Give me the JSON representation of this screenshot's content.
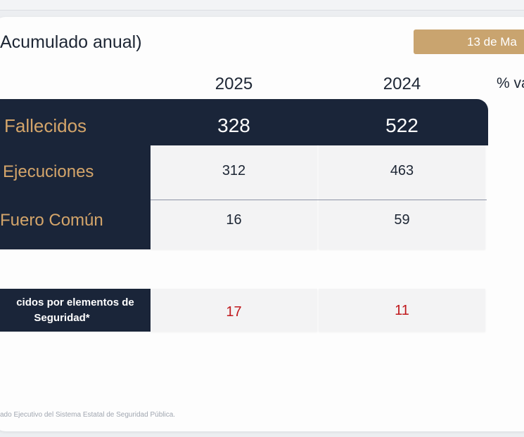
{
  "header": {
    "title": "Acumulado anual)",
    "date_badge": "13 de Ma"
  },
  "table": {
    "columns": [
      "2025",
      "2024",
      "% va"
    ],
    "main_row": {
      "label": "Fallecidos",
      "v2025": "328",
      "v2024": "522"
    },
    "rows": [
      {
        "label": "Ejecuciones",
        "v2025": "312",
        "v2024": "463"
      },
      {
        "label": "Fuero Común",
        "v2025": "16",
        "v2024": "59"
      }
    ]
  },
  "security_row": {
    "label_line1": "cidos por elementos de",
    "label_line2": "Seguridad*",
    "v2025": "17",
    "v2024": "11"
  },
  "footer": {
    "source": "ado Ejecutivo del Sistema Estatal de Seguridad Pública."
  },
  "colors": {
    "navy": "#1a2539",
    "gold": "#d4a56a",
    "badge": "#c9a46f",
    "red": "#c0181c"
  }
}
